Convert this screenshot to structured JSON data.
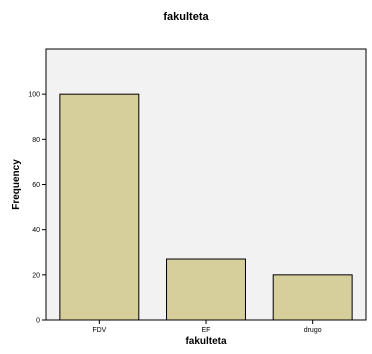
{
  "chart_data": {
    "type": "bar",
    "title": "fakulteta",
    "xlabel": "fakulteta",
    "ylabel": "Frequency",
    "categories": [
      "FDV",
      "EF",
      "drugo"
    ],
    "values": [
      100,
      27,
      20
    ],
    "ylim": [
      0,
      120
    ],
    "yticks": [
      0,
      20,
      40,
      60,
      80,
      100
    ],
    "grid": false,
    "colors": {
      "bar": "#d6cf9c",
      "plot_background": "#f2f2f2"
    }
  }
}
